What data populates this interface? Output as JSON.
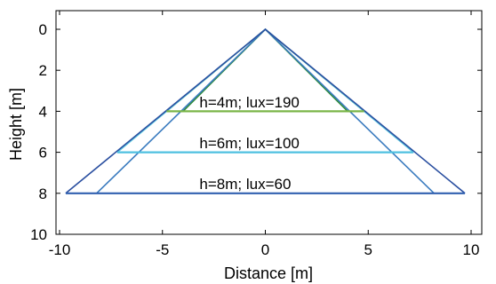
{
  "chart_data": {
    "type": "line",
    "title": "",
    "xlabel": "Distance [m]",
    "ylabel": "Height [m]",
    "xlim": [
      -10,
      10
    ],
    "ylim": [
      0,
      10
    ],
    "y_inverted": true,
    "grid": false,
    "legend": "none",
    "x_ticks": [
      "-10",
      "-5",
      "0",
      "5",
      "10"
    ],
    "y_ticks": [
      "0",
      "2",
      "4",
      "6",
      "8",
      "10"
    ],
    "series": [
      {
        "color": "#7ab648",
        "x": [
          -4.8,
          0,
          4.8
        ],
        "y": [
          4,
          0,
          4
        ]
      },
      {
        "color": "#2e8b3a",
        "x": [
          -4.0,
          0,
          4.0
        ],
        "y": [
          4,
          0,
          4
        ]
      },
      {
        "color": "#5bc8e0",
        "x": [
          -7.2,
          0,
          7.2
        ],
        "y": [
          6,
          0,
          6
        ]
      },
      {
        "color": "#3a7bbf",
        "x": [
          -8.2,
          0,
          8.2
        ],
        "y": [
          8,
          0,
          8
        ]
      },
      {
        "color": "#2a4fa0",
        "x": [
          -9.7,
          0,
          9.7
        ],
        "y": [
          8,
          0,
          8
        ]
      }
    ],
    "horizontal_lines": [
      {
        "y": 4,
        "x": [
          -4.8,
          4.8
        ],
        "color": "#7ab648"
      },
      {
        "y": 6,
        "x": [
          -7.2,
          7.2
        ],
        "color": "#4fc0e0"
      },
      {
        "y": 8,
        "x": [
          -9.7,
          9.7
        ],
        "color": "#3060b0"
      }
    ],
    "annotations": [
      {
        "text": "h=4m; lux=190",
        "x": -3.2,
        "y": 3.8
      },
      {
        "text": "h=6m; lux=100",
        "x": -3.2,
        "y": 5.8
      },
      {
        "text": "h=8m; lux=60",
        "x": -3.2,
        "y": 7.8
      }
    ]
  }
}
